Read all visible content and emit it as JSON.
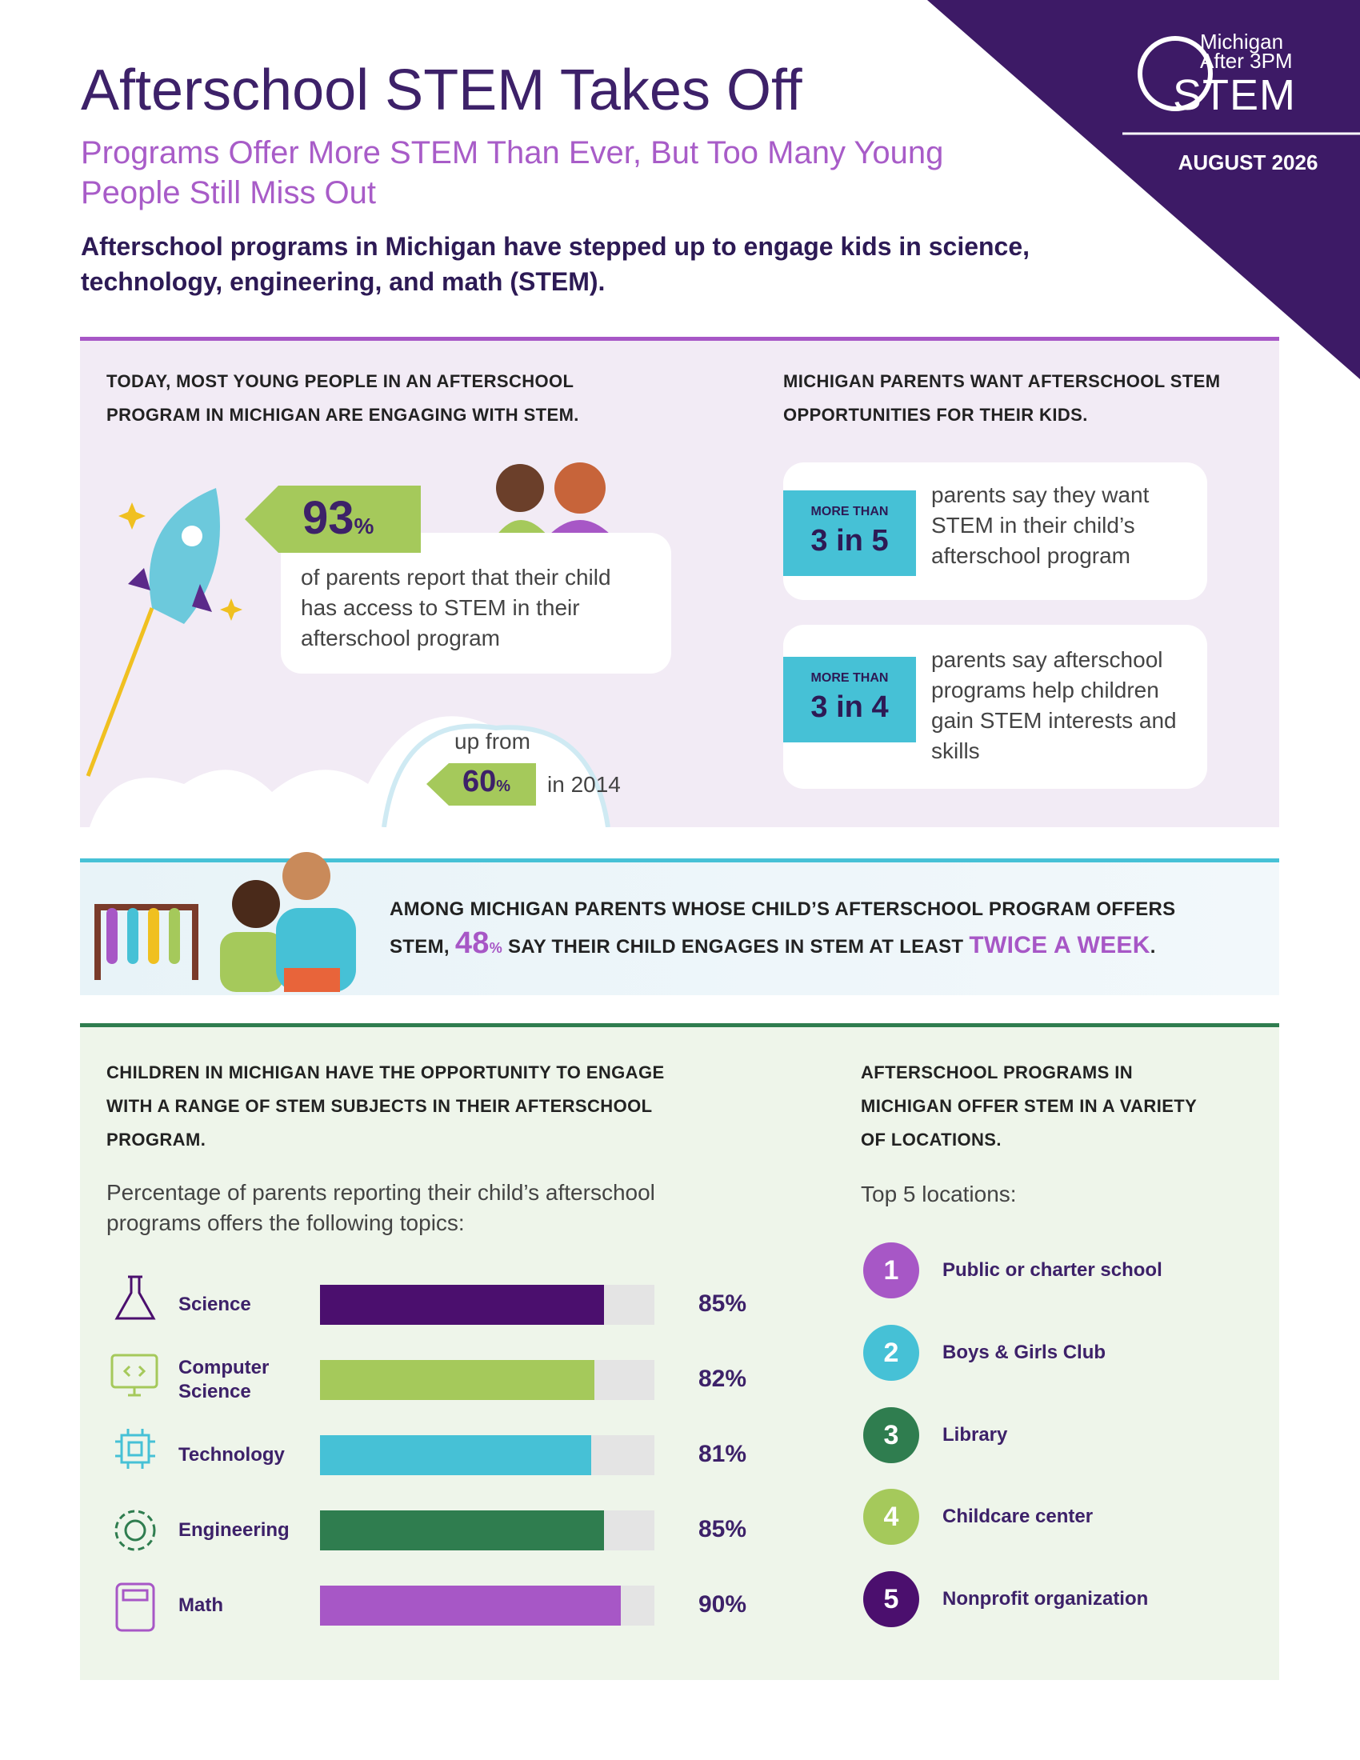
{
  "logo": {
    "line1": "Michigan",
    "line2": "After 3PM",
    "line3": "STEM"
  },
  "date": "AUGUST 2026",
  "header": {
    "title": "Afterschool STEM Takes Off",
    "subtitle": "Programs Offer More STEM Than Ever, But Too Many Young People Still Miss Out",
    "intro": "Afterschool programs in Michigan have stepped up to engage kids in science, technology, engineering, and math (STEM)."
  },
  "access": {
    "heading": "TODAY, MOST YOUNG PEOPLE IN AN AFTERSCHOOL PROGRAM IN MICHIGAN ARE ENGAGING WITH STEM.",
    "stat": {
      "number": "93",
      "unit": "%"
    },
    "text": "of parents report that their child has access to STEM in their afterschool program",
    "prior_prefix": "up from",
    "prior_stat": {
      "number": "60",
      "unit": "%"
    },
    "prior_suffix": "in 2014"
  },
  "parents": {
    "heading": "MICHIGAN PARENTS WANT AFTERSCHOOL STEM OPPORTUNITIES FOR THEIR KIDS.",
    "cards": [
      {
        "qualifier": "MORE THAN",
        "ratio": "3 in 5",
        "text": "parents say they want STEM in their child’s afterschool program"
      },
      {
        "qualifier": "MORE THAN",
        "ratio": "3 in 4",
        "text": "parents say afterschool programs help children gain STEM interests and skills"
      }
    ]
  },
  "banner": {
    "part1": "AMONG MICHIGAN PARENTS WHOSE CHILD’S AFTERSCHOOL PROGRAM OFFERS STEM,",
    "stat": {
      "number": "48",
      "unit": "%"
    },
    "part2": "SAY THEIR CHILD ENGAGES IN STEM AT LEAST",
    "highlight": "TWICE A WEEK",
    "end": "."
  },
  "subjects": {
    "heading": "CHILDREN IN MICHIGAN HAVE THE OPPORTUNITY TO ENGAGE WITH A RANGE OF STEM SUBJECTS IN THEIR AFTERSCHOOL PROGRAM.",
    "description": "Percentage of parents reporting their child’s afterschool programs offers the following topics:",
    "xlim": [
      0,
      100
    ],
    "track_color": "#e4e4e4",
    "items": [
      {
        "label": "Science",
        "value": 85,
        "value_label": "85%",
        "color": "#4b0f6e"
      },
      {
        "label": "Computer Science",
        "value": 82,
        "value_label": "82%",
        "color": "#a5c95b"
      },
      {
        "label": "Technology",
        "value": 81,
        "value_label": "81%",
        "color": "#46c1d6"
      },
      {
        "label": "Engineering",
        "value": 85,
        "value_label": "85%",
        "color": "#2f7d4f"
      },
      {
        "label": "Math",
        "value": 90,
        "value_label": "90%",
        "color": "#a757c6"
      }
    ]
  },
  "locations": {
    "heading": "AFTERSCHOOL PROGRAMS IN MICHIGAN OFFER STEM IN A VARIETY OF LOCATIONS.",
    "intro": "Top 5 locations:",
    "items": [
      {
        "number": "1",
        "label": "Public or charter school",
        "color": "#a757c6"
      },
      {
        "number": "2",
        "label": "Boys & Girls Club",
        "color": "#46c1d6"
      },
      {
        "number": "3",
        "label": "Library",
        "color": "#2f7d4f"
      },
      {
        "number": "4",
        "label": "Childcare center",
        "color": "#a5c95b"
      },
      {
        "number": "5",
        "label": "Nonprofit organization",
        "color": "#4b0f6e"
      }
    ]
  }
}
